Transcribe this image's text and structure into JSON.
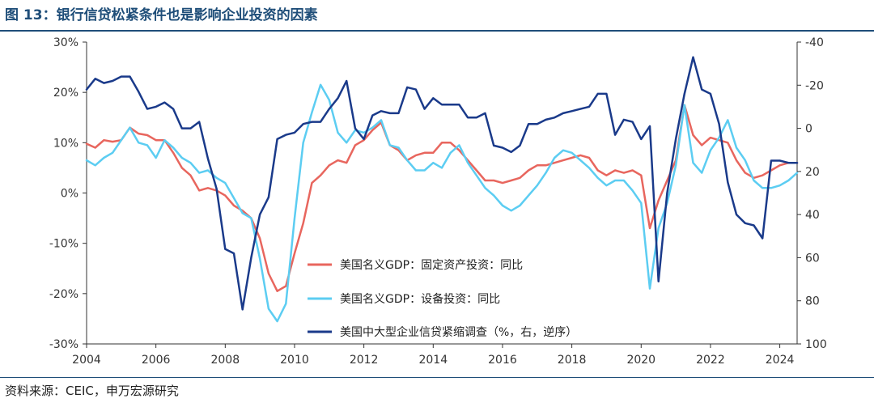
{
  "figure": {
    "title": "图 13：银行信贷松紧条件也是影响企业投资的因素",
    "source": "资料来源：CEIC，申万宏源研究"
  },
  "colors": {
    "fixed": "#e8665e",
    "equip": "#5ccdf2",
    "credit": "#1a3a8a",
    "axis": "#333333",
    "title": "#1f4e79"
  },
  "chart_data": {
    "type": "line",
    "title": "图 13：银行信贷松紧条件也是影响企业投资的因素",
    "x_ticks": [
      "2004",
      "2006",
      "2008",
      "2010",
      "2012",
      "2014",
      "2016",
      "2018",
      "2020",
      "2022",
      "2024"
    ],
    "xlim": [
      2004,
      2024.5
    ],
    "left_axis": {
      "ticks": [
        "30%",
        "20%",
        "10%",
        "0%",
        "-10%",
        "-20%",
        "-30%"
      ],
      "range": [
        -30,
        30
      ]
    },
    "right_axis": {
      "ticks": [
        "-40",
        "-20",
        "0",
        "20",
        "40",
        "60",
        "80",
        "100"
      ],
      "range": [
        -40,
        100
      ],
      "inverted": true
    },
    "series": [
      {
        "name": "美国名义GDP：固定资产投资：同比",
        "axis": "left",
        "x": [
          2004.0,
          2004.25,
          2004.5,
          2004.75,
          2005.0,
          2005.25,
          2005.5,
          2005.75,
          2006.0,
          2006.25,
          2006.5,
          2006.75,
          2007.0,
          2007.25,
          2007.5,
          2007.75,
          2008.0,
          2008.25,
          2008.5,
          2008.75,
          2009.0,
          2009.25,
          2009.5,
          2009.75,
          2010.0,
          2010.25,
          2010.5,
          2010.75,
          2011.0,
          2011.25,
          2011.5,
          2011.75,
          2012.0,
          2012.25,
          2012.5,
          2012.75,
          2013.0,
          2013.25,
          2013.5,
          2013.75,
          2014.0,
          2014.25,
          2014.5,
          2014.75,
          2015.0,
          2015.25,
          2015.5,
          2015.75,
          2016.0,
          2016.25,
          2016.5,
          2016.75,
          2017.0,
          2017.25,
          2017.5,
          2017.75,
          2018.0,
          2018.25,
          2018.5,
          2018.75,
          2019.0,
          2019.25,
          2019.5,
          2019.75,
          2020.0,
          2020.25,
          2020.5,
          2020.75,
          2021.0,
          2021.25,
          2021.5,
          2021.75,
          2022.0,
          2022.25,
          2022.5,
          2022.75,
          2023.0,
          2023.25,
          2023.5,
          2023.75,
          2024.0,
          2024.25,
          2024.5
        ],
        "values": [
          9.8,
          9.0,
          10.5,
          10.2,
          10.5,
          13.0,
          11.8,
          11.5,
          10.5,
          10.5,
          8.0,
          5.0,
          3.5,
          0.5,
          1.0,
          0.5,
          -0.5,
          -2.5,
          -3.5,
          -5.0,
          -9.0,
          -16.0,
          -19.5,
          -18.5,
          -12.0,
          -6.0,
          2.0,
          3.5,
          5.5,
          6.5,
          6.0,
          9.5,
          10.5,
          12.5,
          14.0,
          9.5,
          8.5,
          6.5,
          7.5,
          8.0,
          8.0,
          10.0,
          10.0,
          8.5,
          6.5,
          4.5,
          2.5,
          2.5,
          2.0,
          2.5,
          3.0,
          4.5,
          5.5,
          5.5,
          6.0,
          6.5,
          7.0,
          7.5,
          7.0,
          4.5,
          3.5,
          4.5,
          4.0,
          4.5,
          3.5,
          -7.0,
          -1.5,
          2.5,
          6.5,
          17.5,
          11.5,
          9.5,
          11.0,
          10.5,
          10.0,
          6.5,
          4.0,
          3.0,
          3.5,
          4.5,
          5.5,
          6.0,
          6.0
        ]
      },
      {
        "name": "美国名义GDP：设备投资：同比",
        "axis": "left",
        "x": [
          2004.0,
          2004.25,
          2004.5,
          2004.75,
          2005.0,
          2005.25,
          2005.5,
          2005.75,
          2006.0,
          2006.25,
          2006.5,
          2006.75,
          2007.0,
          2007.25,
          2007.5,
          2007.75,
          2008.0,
          2008.25,
          2008.5,
          2008.75,
          2009.0,
          2009.25,
          2009.5,
          2009.75,
          2010.0,
          2010.25,
          2010.5,
          2010.75,
          2011.0,
          2011.25,
          2011.5,
          2011.75,
          2012.0,
          2012.25,
          2012.5,
          2012.75,
          2013.0,
          2013.25,
          2013.5,
          2013.75,
          2014.0,
          2014.25,
          2014.5,
          2014.75,
          2015.0,
          2015.25,
          2015.5,
          2015.75,
          2016.0,
          2016.25,
          2016.5,
          2016.75,
          2017.0,
          2017.25,
          2017.5,
          2017.75,
          2018.0,
          2018.25,
          2018.5,
          2018.75,
          2019.0,
          2019.25,
          2019.5,
          2019.75,
          2020.0,
          2020.25,
          2020.5,
          2020.75,
          2021.0,
          2021.25,
          2021.5,
          2021.75,
          2022.0,
          2022.25,
          2022.5,
          2022.75,
          2023.0,
          2023.25,
          2023.5,
          2023.75,
          2024.0,
          2024.25,
          2024.5
        ],
        "values": [
          6.5,
          5.5,
          7.0,
          8.0,
          10.5,
          13.0,
          10.0,
          9.5,
          7.0,
          10.5,
          9.0,
          7.0,
          6.0,
          4.0,
          4.5,
          3.0,
          2.0,
          -1.0,
          -4.0,
          -5.0,
          -13.0,
          -23.0,
          -25.5,
          -22.0,
          -5.0,
          10.0,
          16.0,
          21.5,
          18.5,
          12.0,
          10.0,
          12.5,
          12.0,
          13.0,
          14.5,
          9.5,
          9.0,
          6.5,
          4.5,
          4.5,
          6.0,
          5.0,
          8.0,
          9.5,
          6.0,
          3.5,
          1.0,
          -0.5,
          -2.5,
          -3.5,
          -2.5,
          -0.5,
          1.5,
          4.0,
          7.0,
          8.5,
          8.0,
          6.5,
          5.0,
          3.0,
          1.5,
          2.5,
          2.5,
          0.5,
          -2.0,
          -19.0,
          -7.0,
          -2.0,
          5.5,
          17.5,
          6.0,
          4.0,
          8.5,
          11.0,
          14.5,
          9.0,
          6.5,
          2.5,
          1.0,
          1.0,
          1.5,
          2.5,
          4.0
        ]
      },
      {
        "name": "美国中大型企业信贷紧缩调查（%，右，逆序）",
        "axis": "right",
        "x": [
          2004.0,
          2004.25,
          2004.5,
          2004.75,
          2005.0,
          2005.25,
          2005.5,
          2005.75,
          2006.0,
          2006.25,
          2006.5,
          2006.75,
          2007.0,
          2007.25,
          2007.5,
          2007.75,
          2008.0,
          2008.25,
          2008.5,
          2008.75,
          2009.0,
          2009.25,
          2009.5,
          2009.75,
          2010.0,
          2010.25,
          2010.5,
          2010.75,
          2011.0,
          2011.25,
          2011.5,
          2011.75,
          2012.0,
          2012.25,
          2012.5,
          2012.75,
          2013.0,
          2013.25,
          2013.5,
          2013.75,
          2014.0,
          2014.25,
          2014.5,
          2014.75,
          2015.0,
          2015.25,
          2015.5,
          2015.75,
          2016.0,
          2016.25,
          2016.5,
          2016.75,
          2017.0,
          2017.25,
          2017.5,
          2017.75,
          2018.0,
          2018.25,
          2018.5,
          2018.75,
          2019.0,
          2019.25,
          2019.5,
          2019.75,
          2020.0,
          2020.25,
          2020.5,
          2020.75,
          2021.0,
          2021.25,
          2021.5,
          2021.75,
          2022.0,
          2022.25,
          2022.5,
          2022.75,
          2023.0,
          2023.25,
          2023.5,
          2023.75,
          2024.0,
          2024.25,
          2024.5
        ],
        "values": [
          -18,
          -23,
          -21,
          -22,
          -24,
          -24,
          -17,
          -9,
          -10,
          -12,
          -9,
          0,
          0,
          -3,
          14,
          28,
          56,
          58,
          84,
          60,
          40,
          32,
          5,
          3,
          2,
          -2,
          -3,
          -3,
          -9,
          -14,
          -22,
          0,
          5,
          -6,
          -8,
          -7,
          -7,
          -19,
          -18,
          -9,
          -14,
          -11,
          -11,
          -11,
          -5,
          -5,
          -7,
          8,
          9,
          11,
          8,
          -2,
          -2,
          -4,
          -5,
          -7,
          -8,
          -9,
          -10,
          -16,
          -16,
          3,
          -4,
          -3,
          5,
          -1,
          71,
          30,
          5,
          -16,
          -33,
          -18,
          -16,
          -2,
          25,
          40,
          44,
          45,
          51,
          15,
          15,
          16,
          16
        ]
      }
    ],
    "legend": [
      "美国名义GDP：固定资产投资：同比",
      "美国名义GDP：设备投资：同比",
      "美国中大型企业信贷紧缩调查（%，右，逆序）"
    ]
  }
}
